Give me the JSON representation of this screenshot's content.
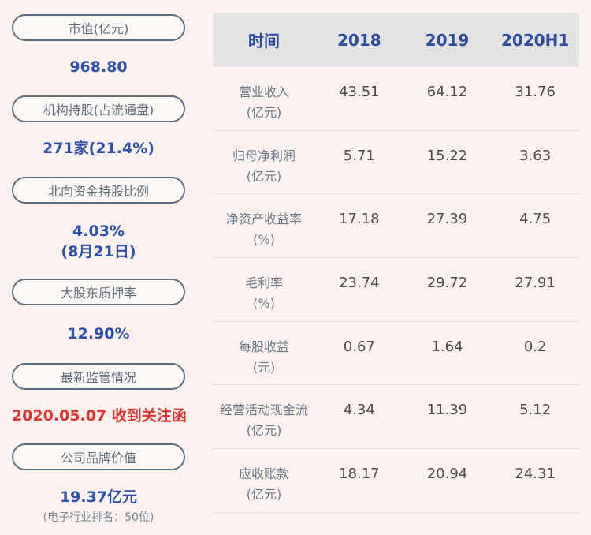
{
  "colors": {
    "background": "#fbf1ef",
    "table_header_bg": "#e2e2e2",
    "table_header_text": "#2e4b9e",
    "pill_border": "#5d6d7e",
    "value_blue": "#2f51a7",
    "alert_red": "#e03434",
    "row_label_gray": "#6b7989",
    "number_gray": "#4c4c4c"
  },
  "sidebar": {
    "items": [
      {
        "label": "市值(亿元)",
        "value": "968.80",
        "value_color": "blue"
      },
      {
        "label": "机构持股(占流通盘)",
        "value": "271家(21.4%)",
        "value_color": "blue"
      },
      {
        "label": "北向资金持股比例",
        "value": "4.03%",
        "value_line2": "(8月21日)",
        "value_color": "blue"
      },
      {
        "label": "大股东质押率",
        "value": "12.90%",
        "value_color": "blue"
      },
      {
        "label": "最新监管情况",
        "value": "2020.05.07 收到关注函",
        "value_color": "red"
      },
      {
        "label": "公司品牌价值",
        "value": "19.37亿元",
        "note": "(电子行业排名：50位)",
        "value_color": "blue"
      }
    ]
  },
  "chart_data": {
    "type": "table",
    "title": "",
    "columns": [
      "时间",
      "2018",
      "2019",
      "2020H1"
    ],
    "rows": [
      {
        "label": "营业收入",
        "unit": "(亿元)",
        "values": [
          "43.51",
          "64.12",
          "31.76"
        ]
      },
      {
        "label": "归母净利润",
        "unit": "(亿元)",
        "values": [
          "5.71",
          "15.22",
          "3.63"
        ]
      },
      {
        "label": "净资产收益率",
        "unit": "(%)",
        "values": [
          "17.18",
          "27.39",
          "4.75"
        ]
      },
      {
        "label": "毛利率",
        "unit": "(%)",
        "values": [
          "23.74",
          "29.72",
          "27.91"
        ]
      },
      {
        "label": "每股收益",
        "unit": "(元)",
        "values": [
          "0.67",
          "1.64",
          "0.2"
        ]
      },
      {
        "label": "经营活动现金流",
        "unit": "(亿元)",
        "values": [
          "4.34",
          "11.39",
          "5.12"
        ]
      },
      {
        "label": "应收账款",
        "unit": "(亿元)",
        "values": [
          "18.17",
          "20.94",
          "24.31"
        ]
      }
    ],
    "layout": {
      "grid": false,
      "header_row_shaded": true,
      "legend_position": "none"
    }
  }
}
